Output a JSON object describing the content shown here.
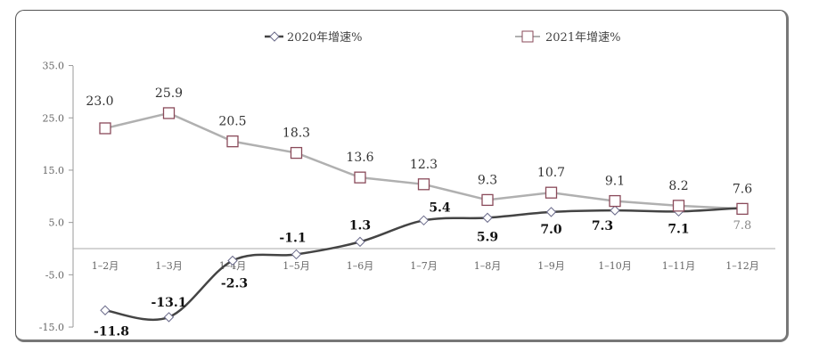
{
  "chart_data": {
    "type": "line",
    "categories": [
      "1–2月",
      "1–3月",
      "1–4月",
      "1–5月",
      "1–6月",
      "1–7月",
      "1–8月",
      "1–9月",
      "1–10月",
      "1–11月",
      "1–12月"
    ],
    "series": [
      {
        "name": "2020年增速%",
        "values": [
          -11.8,
          -13.1,
          -2.3,
          -1.1,
          1.3,
          5.4,
          5.9,
          7.0,
          7.3,
          7.1,
          7.8
        ],
        "color": "#444444",
        "marker": "diamond",
        "smooth": true
      },
      {
        "name": "2021年增速%",
        "values": [
          23.0,
          25.9,
          20.5,
          18.3,
          13.6,
          12.3,
          9.3,
          10.7,
          9.1,
          8.2,
          7.6
        ],
        "color": "#b0b0b0",
        "marker": "square",
        "marker_color": "#8a4a5a"
      }
    ],
    "y_ticks": [
      "35.0",
      "25.0",
      "15.0",
      "5.0",
      "-5.0",
      "-15.0"
    ],
    "ylim": [
      -15,
      35
    ],
    "legend_position": "top",
    "grid": false
  }
}
